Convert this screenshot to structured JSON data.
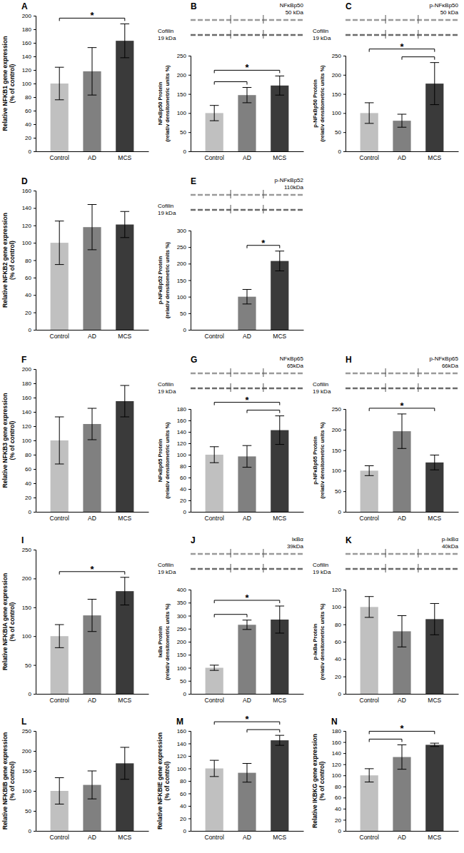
{
  "chart_data": [
    {
      "type": "bar",
      "title": "A",
      "categories": [
        "Control",
        "AD",
        "MCS"
      ],
      "values": [
        100,
        118,
        163
      ],
      "errors": [
        24,
        35,
        25
      ],
      "colors": [
        "#c0c0c0",
        "#808080",
        "#3a3a3a"
      ],
      "y_label": [
        "Relative NFKB1 gene expression",
        "(% of control)"
      ],
      "ylim": [
        0,
        200
      ],
      "yticks": [
        0,
        20,
        40,
        60,
        80,
        100,
        120,
        140,
        160,
        180,
        200
      ],
      "brackets": [
        [
          "Control",
          "MCS"
        ]
      ],
      "annotation": "*"
    },
    {
      "type": "bar",
      "title": "B",
      "categories": [
        "Control",
        "AD",
        "MCS"
      ],
      "values": [
        100,
        147,
        172
      ],
      "errors": [
        20,
        20,
        25
      ],
      "colors": [
        "#c0c0c0",
        "#808080",
        "#3a3a3a"
      ],
      "y_label": [
        "NFκBp50 Protein",
        "(relativ densitometric units %)"
      ],
      "ylim": [
        0,
        250
      ],
      "yticks": [
        0,
        50,
        100,
        150,
        200,
        250
      ],
      "brackets": [
        [
          "Control",
          "AD"
        ],
        [
          "Control",
          "MCS"
        ]
      ],
      "annotation": "*",
      "blot": {
        "target": "NFκBp50",
        "target_kda": "50 kDa",
        "control": "Cofilin",
        "control_kda": "19 kDa"
      }
    },
    {
      "type": "bar",
      "title": "C",
      "categories": [
        "Control",
        "AD",
        "MCS"
      ],
      "values": [
        100,
        80,
        177
      ],
      "errors": [
        27,
        17,
        55
      ],
      "colors": [
        "#c0c0c0",
        "#808080",
        "#3a3a3a"
      ],
      "y_label": [
        "p-NFκBp50  Protein",
        "(relativ densitometric units %)"
      ],
      "ylim": [
        0,
        250
      ],
      "yticks": [
        0,
        50,
        100,
        150,
        200,
        250
      ],
      "brackets": [
        [
          "AD",
          "MCS"
        ],
        [
          "Control",
          "MCS"
        ]
      ],
      "annotation": "*",
      "blot": {
        "target": "p-NFκBp50",
        "target_kda": "50 kDa",
        "control": "Cofilin",
        "control_kda": "19 kDa"
      }
    },
    {
      "type": "bar",
      "title": "D",
      "categories": [
        "Control",
        "AD",
        "MCS"
      ],
      "values": [
        100,
        118,
        121
      ],
      "errors": [
        25,
        26,
        15
      ],
      "colors": [
        "#c0c0c0",
        "#808080",
        "#3a3a3a"
      ],
      "y_label": [
        "Relative NFKB2 gene expression",
        "(% of control)"
      ],
      "ylim": [
        0,
        160
      ],
      "yticks": [
        0,
        20,
        40,
        60,
        80,
        100,
        120,
        140,
        160
      ]
    },
    {
      "type": "bar",
      "title": "E",
      "categories": [
        "Control",
        "AD",
        "MCS"
      ],
      "values": [
        null,
        100,
        208
      ],
      "errors": [
        null,
        22,
        30
      ],
      "colors": [
        "#c0c0c0",
        "#808080",
        "#3a3a3a"
      ],
      "y_label": [
        "p-NFκBp52  Protein",
        "(relativ densitometric units %)"
      ],
      "ylim": [
        0,
        300
      ],
      "yticks": [
        0,
        50,
        100,
        150,
        200,
        250,
        300
      ],
      "brackets": [
        [
          "AD",
          "MCS"
        ]
      ],
      "annotation": "*",
      "blot": {
        "target": "p-NFκBp52",
        "target_kda": "110kDa",
        "control": "Cofilin",
        "control_kda": "19 kDa"
      }
    },
    {
      "type": "bar",
      "title": "F",
      "categories": [
        "Control",
        "AD",
        "MCS"
      ],
      "values": [
        100,
        123,
        155
      ],
      "errors": [
        33,
        22,
        22
      ],
      "colors": [
        "#c0c0c0",
        "#808080",
        "#3a3a3a"
      ],
      "y_label": [
        "Relative NFKB3  gene expression",
        "(% of control)"
      ],
      "ylim": [
        0,
        200
      ],
      "yticks": [
        0,
        20,
        40,
        60,
        80,
        100,
        120,
        140,
        160,
        180,
        200
      ]
    },
    {
      "type": "bar",
      "title": "G",
      "categories": [
        "Control",
        "AD",
        "MCS"
      ],
      "values": [
        100,
        97,
        143
      ],
      "errors": [
        14,
        19,
        25
      ],
      "colors": [
        "#c0c0c0",
        "#808080",
        "#3a3a3a"
      ],
      "y_label": [
        "NFκBp65 Protein",
        "(relativ densitometric units %)"
      ],
      "ylim": [
        0,
        180
      ],
      "yticks": [
        0,
        20,
        40,
        60,
        80,
        100,
        120,
        140,
        160,
        180
      ],
      "brackets": [
        [
          "AD",
          "MCS"
        ],
        [
          "Control",
          "MCS"
        ]
      ],
      "annotation": "*",
      "blot": {
        "target": "NFκBp65",
        "target_kda": "65kDa",
        "control": "Cofilin",
        "control_kda": "19 kDa"
      }
    },
    {
      "type": "bar",
      "title": "H",
      "categories": [
        "Control",
        "AD",
        "MCS"
      ],
      "values": [
        100,
        196,
        120
      ],
      "errors": [
        12,
        42,
        18
      ],
      "colors": [
        "#c0c0c0",
        "#808080",
        "#3a3a3a"
      ],
      "y_label": [
        "p-NFκBp65  Protein",
        "(relativ densitometric units %)"
      ],
      "ylim": [
        0,
        250
      ],
      "yticks": [
        0,
        50,
        100,
        150,
        200,
        250
      ],
      "brackets": [
        [
          "Control",
          "MCS"
        ]
      ],
      "annotation": "*",
      "blot": {
        "target": "p-NFκBp65",
        "target_kda": "66kDa",
        "control": "Cofilin",
        "control_kda": "19 kDa"
      }
    },
    {
      "type": "bar",
      "title": "I",
      "categories": [
        "Control",
        "AD",
        "MCS"
      ],
      "values": [
        100,
        136,
        178
      ],
      "errors": [
        20,
        28,
        24
      ],
      "colors": [
        "#c0c0c0",
        "#808080",
        "#3a3a3a"
      ],
      "y_label": [
        "Relative NFKBIA gene expression",
        "(% of control)"
      ],
      "ylim": [
        0,
        250
      ],
      "yticks": [
        0,
        50,
        100,
        150,
        200,
        250
      ],
      "brackets": [
        [
          "Control",
          "MCS"
        ]
      ],
      "annotation": "*"
    },
    {
      "type": "bar",
      "title": "J",
      "categories": [
        "Control",
        "AD",
        "MCS"
      ],
      "values": [
        100,
        265,
        285
      ],
      "errors": [
        10,
        18,
        52
      ],
      "colors": [
        "#c0c0c0",
        "#808080",
        "#3a3a3a"
      ],
      "y_label": [
        "IκBa Protein",
        "(relativ densitometric units %)"
      ],
      "ylim": [
        0,
        400
      ],
      "yticks": [
        0,
        50,
        100,
        150,
        200,
        250,
        300,
        350,
        400
      ],
      "brackets": [
        [
          "Control",
          "AD"
        ],
        [
          "Control",
          "MCS"
        ]
      ],
      "annotation": "*",
      "blot": {
        "target": "IκBα",
        "target_kda": "39kDa",
        "control": "Cofilin",
        "control_kda": "19 kDa"
      }
    },
    {
      "type": "bar",
      "title": "K",
      "categories": [
        "Control",
        "AD",
        "MCS"
      ],
      "values": [
        100,
        72,
        86
      ],
      "errors": [
        12,
        18,
        18
      ],
      "colors": [
        "#c0c0c0",
        "#808080",
        "#3a3a3a"
      ],
      "y_label": [
        "p-IκBa Protein",
        "(relativ densitometric units %)"
      ],
      "ylim": [
        0,
        120
      ],
      "yticks": [
        0,
        20,
        40,
        60,
        80,
        100,
        120
      ],
      "blot": {
        "target": "p-IκBα",
        "target_kda": "40kDa",
        "control": "Cofilin",
        "control_kda": "19 kDa"
      }
    },
    {
      "type": "bar",
      "title": "L",
      "categories": [
        "Control",
        "AD",
        "MCS"
      ],
      "values": [
        100,
        115,
        169
      ],
      "errors": [
        33,
        35,
        40
      ],
      "colors": [
        "#c0c0c0",
        "#808080",
        "#3a3a3a"
      ],
      "y_label": [
        "Relative NFKBIB gene expression",
        "(% of control)"
      ],
      "ylim": [
        0,
        250
      ],
      "yticks": [
        0,
        50,
        100,
        150,
        200,
        250
      ]
    },
    {
      "type": "bar",
      "title": "M",
      "categories": [
        "Control",
        "AD",
        "MCS"
      ],
      "values": [
        100,
        93,
        145
      ],
      "errors": [
        13,
        15,
        8
      ],
      "colors": [
        "#c0c0c0",
        "#808080",
        "#3a3a3a"
      ],
      "y_label": [
        "Relative NFKBIE gene expression",
        "(% of control)"
      ],
      "ylim": [
        0,
        160
      ],
      "yticks": [
        0,
        20,
        40,
        60,
        80,
        100,
        120,
        140,
        160
      ],
      "brackets": [
        [
          "AD",
          "MCS"
        ],
        [
          "Control",
          "MCS"
        ]
      ],
      "annotation": "*"
    },
    {
      "type": "bar",
      "title": "N",
      "categories": [
        "Control",
        "AD",
        "MCS"
      ],
      "values": [
        100,
        133,
        155
      ],
      "errors": [
        12,
        22,
        3
      ],
      "colors": [
        "#c0c0c0",
        "#808080",
        "#3a3a3a"
      ],
      "y_label": [
        "Relative IKBKG gene expression",
        "(% of control)"
      ],
      "ylim": [
        0,
        180
      ],
      "yticks": [
        0,
        20,
        40,
        60,
        80,
        100,
        120,
        140,
        160,
        180
      ],
      "brackets": [
        [
          "Control",
          "AD"
        ],
        [
          "Control",
          "MCS"
        ]
      ],
      "annotation": "*"
    }
  ]
}
